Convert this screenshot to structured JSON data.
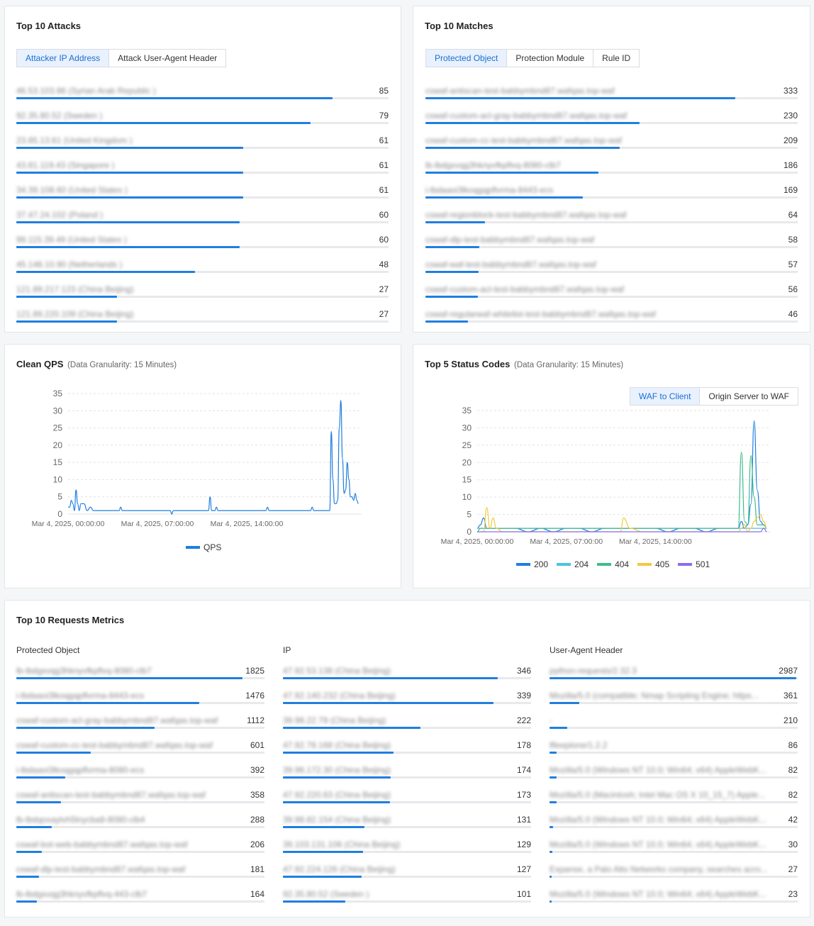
{
  "attacks": {
    "title": "Top 10 Attacks",
    "tabs": [
      {
        "label": "Attacker IP Address",
        "active": true
      },
      {
        "label": "Attack User-Agent Header",
        "active": false
      }
    ],
    "max": 100,
    "rows": [
      {
        "label": "46.53.103.86 (Syrian Arab Republic )",
        "value": "85",
        "n": 85
      },
      {
        "label": "92.35.80.52 (Sweden )",
        "value": "79",
        "n": 79
      },
      {
        "label": "23.85.13.61 (United Kingdom )",
        "value": "61",
        "n": 61
      },
      {
        "label": "43.81.119.43 (Singapore )",
        "value": "61",
        "n": 61
      },
      {
        "label": "34.39.108.60 (United States )",
        "value": "61",
        "n": 61
      },
      {
        "label": "37.47.24.102 (Poland )",
        "value": "60",
        "n": 60
      },
      {
        "label": "99.115.39.49 (United States )",
        "value": "60",
        "n": 60
      },
      {
        "label": "45.148.10.90 (Netherlands )",
        "value": "48",
        "n": 48
      },
      {
        "label": "121.89.217.123 (China Beijing)",
        "value": "27",
        "n": 27
      },
      {
        "label": "121.89.220.109 (China Beijing)",
        "value": "27",
        "n": 27
      }
    ]
  },
  "matches": {
    "title": "Top 10 Matches",
    "tabs": [
      {
        "label": "Protected Object",
        "active": true
      },
      {
        "label": "Protection Module",
        "active": false
      },
      {
        "label": "Rule ID",
        "active": false
      }
    ],
    "max": 400,
    "rows": [
      {
        "label": "cswaf-antiscan-test-babbymbnd87.wafqas.top-waf",
        "value": "333",
        "n": 333
      },
      {
        "label": "cswaf-custom-acl-gray-babbymbnd87.wafqas.top-waf",
        "value": "230",
        "n": 230
      },
      {
        "label": "cswaf-custom-cc-test-babbymbnd87.wafqas.top-waf",
        "value": "209",
        "n": 209
      },
      {
        "label": "lb-lbdgxvqg3hknyvfkpflvq-8080-clb7",
        "value": "186",
        "n": 186
      },
      {
        "label": "i-lbdaaoi3lkoqgqpflvrma-8443-ecs",
        "value": "169",
        "n": 169
      },
      {
        "label": "cswaf-regionblock-test-babbymbnd87.wafqas.top-waf",
        "value": "64",
        "n": 64
      },
      {
        "label": "cswaf-dlp-test-babbymbnd87.wafqas.top-waf",
        "value": "58",
        "n": 58
      },
      {
        "label": "cswaf-waf-test-babbymbnd87.wafqas.top-waf",
        "value": "57",
        "n": 57
      },
      {
        "label": "cswaf-custom-acl-test-babbymbnd87.wafqas.top-waf",
        "value": "56",
        "n": 56
      },
      {
        "label": "cswaf-regularwaf-whitelist-test-babbymbnd87.wafqas.top-waf",
        "value": "46",
        "n": 46
      }
    ]
  },
  "clean_qps": {
    "title": "Clean QPS",
    "subtitle": "(Data Granularity: 15 Minutes)",
    "legend": "QPS",
    "color": "#1f7ee0"
  },
  "status_codes": {
    "title": "Top 5 Status Codes",
    "subtitle": "(Data Granularity: 15 Minutes)",
    "tabs": [
      {
        "label": "WAF to Client",
        "active": true
      },
      {
        "label": "Origin Server to WAF",
        "active": false
      }
    ]
  },
  "chart_data": [
    {
      "type": "line",
      "title": "Clean QPS",
      "ylim": [
        0,
        35
      ],
      "yticks": [
        0,
        5,
        10,
        15,
        20,
        25,
        30,
        35
      ],
      "xticks": [
        "Mar 4, 2025, 00:00:00",
        "Mar 4, 2025, 07:00:00",
        "Mar 4, 2025, 14:00:00"
      ],
      "grid": true,
      "legend_position": "bottom",
      "x": [
        0,
        0.25,
        0.5,
        0.75,
        1,
        1.25,
        1.5,
        1.75,
        2,
        2.5,
        3,
        3.5,
        4,
        5,
        6,
        7,
        8,
        8.25,
        8.5,
        9,
        10,
        11,
        12,
        13,
        14,
        16,
        16.25,
        16.5,
        17,
        18,
        19,
        20,
        21,
        22,
        22.25,
        22.5,
        23,
        23.25,
        23.5,
        24,
        26,
        28,
        30,
        31,
        31.25,
        31.5,
        32,
        34,
        36,
        38,
        38.25,
        38.5,
        39,
        40,
        41,
        41.25,
        41.5,
        41.75,
        42,
        42.25,
        42.5,
        42.75,
        43,
        43.25,
        43.5,
        43.75,
        44,
        44.25,
        44.5,
        44.75,
        45,
        45.25,
        45.5
      ],
      "series": [
        {
          "name": "QPS",
          "color": "#1f7ee0",
          "values": [
            2,
            2,
            4,
            3,
            1,
            7,
            3,
            1,
            3,
            3,
            1,
            2,
            1,
            1,
            1,
            1,
            1,
            2,
            1,
            1,
            1,
            1,
            1,
            1,
            1,
            1,
            0,
            1,
            1,
            1,
            1,
            1,
            1,
            1,
            5,
            1,
            1,
            2,
            1,
            1,
            1,
            1,
            1,
            1,
            2,
            1,
            1,
            1,
            1,
            1,
            2,
            1,
            1,
            1,
            1,
            24,
            10,
            3,
            3,
            4,
            25,
            33,
            16,
            6,
            7,
            15,
            10,
            5,
            5,
            4,
            6,
            4,
            3
          ]
        }
      ]
    },
    {
      "type": "line",
      "title": "Top 5 Status Codes",
      "ylim": [
        0,
        35
      ],
      "yticks": [
        0,
        5,
        10,
        15,
        20,
        25,
        30,
        35
      ],
      "xticks": [
        "Mar 4, 2025, 00:00:00",
        "Mar 4, 2025, 07:00:00",
        "Mar 4, 2025, 14:00:00"
      ],
      "grid": true,
      "legend_position": "bottom",
      "x": [
        0,
        0.5,
        1,
        1.5,
        2,
        2.5,
        3,
        4,
        5,
        6,
        8,
        10,
        12,
        14,
        16,
        18,
        20,
        22,
        22.5,
        23,
        24,
        26,
        28,
        30,
        32,
        34,
        36,
        38,
        40,
        41,
        41.5,
        42,
        42.5,
        43,
        43.5,
        44,
        44.5,
        45,
        45.5
      ],
      "series": [
        {
          "name": "200",
          "color": "#1f7ee0",
          "values": [
            1,
            2,
            4,
            1,
            1,
            1,
            1,
            1,
            1,
            1,
            0,
            1,
            0,
            1,
            1,
            0,
            1,
            1,
            1,
            1,
            1,
            1,
            1,
            0,
            1,
            1,
            0,
            1,
            1,
            1,
            3,
            1,
            2,
            8,
            32,
            12,
            3,
            2,
            1
          ]
        },
        {
          "name": "204",
          "color": "#4cc3e0",
          "values": [
            1,
            1,
            1,
            1,
            1,
            1,
            1,
            1,
            1,
            1,
            1,
            1,
            1,
            1,
            1,
            1,
            1,
            1,
            1,
            1,
            1,
            1,
            1,
            1,
            1,
            1,
            1,
            1,
            1,
            1,
            1,
            1,
            1,
            1,
            1,
            1,
            1,
            1,
            1
          ]
        },
        {
          "name": "404",
          "color": "#3dbd8a",
          "values": [
            0,
            1,
            1,
            1,
            1,
            1,
            1,
            1,
            1,
            1,
            1,
            1,
            1,
            1,
            1,
            1,
            1,
            1,
            1,
            1,
            1,
            1,
            1,
            1,
            1,
            1,
            1,
            1,
            1,
            1,
            23,
            3,
            2,
            22,
            10,
            2,
            2,
            2,
            1
          ]
        },
        {
          "name": "405",
          "color": "#f5c842",
          "values": [
            0,
            0,
            0,
            7,
            1,
            4,
            1,
            0,
            0,
            0,
            0,
            0,
            0,
            0,
            0,
            0,
            0,
            0,
            0,
            4,
            1,
            0,
            0,
            0,
            0,
            0,
            0,
            0,
            0,
            0,
            1,
            2,
            0,
            1,
            3,
            4,
            5,
            3,
            1
          ]
        },
        {
          "name": "501",
          "color": "#8c6cf0",
          "values": [
            0,
            0,
            0,
            0,
            0,
            0,
            0,
            0,
            0,
            0,
            0,
            0,
            0,
            0,
            0,
            0,
            0,
            0,
            0,
            0,
            0,
            0,
            0,
            0,
            0,
            0,
            0,
            0,
            0,
            0,
            0,
            0,
            0,
            0,
            0,
            0,
            0,
            1,
            0
          ]
        }
      ]
    }
  ],
  "requests": {
    "title": "Top 10 Requests Metrics",
    "columns": [
      {
        "header": "Protected Object",
        "max": 2000,
        "rows": [
          {
            "label": "lb-lbdgxvqg3hknyvfkpflvq-8080-clb7",
            "value": "1825",
            "n": 1825
          },
          {
            "label": "i-lbdaaoi3lkoqgqpflvrma-8443-ecs",
            "value": "1476",
            "n": 1476
          },
          {
            "label": "cswaf-custom-acl-gray-babbymbnd87.wafqas.top-waf",
            "value": "1112",
            "n": 1112
          },
          {
            "label": "cswaf-custom-cc-test-babbymbnd87.wafqas.top-waf",
            "value": "601",
            "n": 601
          },
          {
            "label": "i-lbdaaoi3lkoqgqpflvrma-8080-ecs",
            "value": "392",
            "n": 392
          },
          {
            "label": "cswaf-antiscan-test-babbymbnd87.wafqas.top-waf",
            "value": "358",
            "n": 358
          },
          {
            "label": "lb-lbdqoxaylvh5lnycba8-8080-clb4",
            "value": "288",
            "n": 288
          },
          {
            "label": "cswaf-bot-web-babbymbnd87.wafqas.top-waf",
            "value": "206",
            "n": 206
          },
          {
            "label": "cswaf-dlp-test-babbymbnd87.wafqas.top-waf",
            "value": "181",
            "n": 181
          },
          {
            "label": "lb-lbdgxvqg3hknyvfkpflvq-443-clb7",
            "value": "164",
            "n": 164
          }
        ]
      },
      {
        "header": "IP",
        "max": 400,
        "rows": [
          {
            "label": "47.92.53.138 (China Beijing)",
            "value": "346",
            "n": 346
          },
          {
            "label": "47.92.140.232 (China Beijing)",
            "value": "339",
            "n": 339
          },
          {
            "label": "39.98.22.79 (China Beijing)",
            "value": "222",
            "n": 222
          },
          {
            "label": "47.92.78.168 (China Beijing)",
            "value": "178",
            "n": 178
          },
          {
            "label": "39.98.172.30 (China Beijing)",
            "value": "174",
            "n": 174
          },
          {
            "label": "47.92.220.63 (China Beijing)",
            "value": "173",
            "n": 173
          },
          {
            "label": "39.98.82.154 (China Beijing)",
            "value": "131",
            "n": 131
          },
          {
            "label": "39.103.131.106 (China Beijing)",
            "value": "129",
            "n": 129
          },
          {
            "label": "47.92.224.126 (China Beijing)",
            "value": "127",
            "n": 127
          },
          {
            "label": "92.35.80.52 (Sweden )",
            "value": "101",
            "n": 101
          }
        ]
      },
      {
        "header": "User-Agent Header",
        "max": 3000,
        "rows": [
          {
            "label": "python-requests/2.32.3",
            "value": "2987",
            "n": 2987
          },
          {
            "label": "Mozilla/5.0 (compatible; Nmap Scripting Engine; https...",
            "value": "361",
            "n": 361
          },
          {
            "label": "-",
            "value": "210",
            "n": 210
          },
          {
            "label": "lfleeplone/1.2.2",
            "value": "86",
            "n": 86
          },
          {
            "label": "Mozilla/5.0 (Windows NT 10.0; Win64; x64) AppleWebK...",
            "value": "82",
            "n": 82
          },
          {
            "label": "Mozilla/5.0 (Macintosh; Intel Mac OS X 10_15_7) Apple...",
            "value": "82",
            "n": 82
          },
          {
            "label": "Mozilla/5.0 (Windows NT 10.0; Win64; x64) AppleWebK...",
            "value": "42",
            "n": 42
          },
          {
            "label": "Mozilla/5.0 (Windows NT 10.0; Win64; x64) AppleWebK...",
            "value": "30",
            "n": 30
          },
          {
            "label": "Expanse, a Palo Alto Networks company, searches acro...",
            "value": "27",
            "n": 27
          },
          {
            "label": "Mozilla/5.0 (Windows NT 10.0; Win64; x64) AppleWebK...",
            "value": "23",
            "n": 23
          }
        ]
      }
    ]
  }
}
